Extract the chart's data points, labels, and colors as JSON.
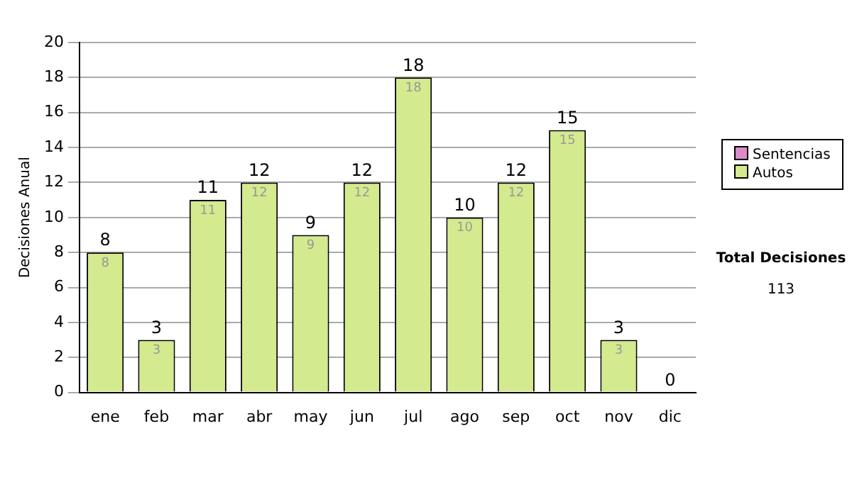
{
  "chart_data": {
    "type": "bar",
    "ylabel": "Decisiones Anual",
    "categories": [
      "ene",
      "feb",
      "mar",
      "abr",
      "may",
      "jun",
      "jul",
      "ago",
      "sep",
      "oct",
      "nov",
      "dic"
    ],
    "stacked": true,
    "series": [
      {
        "name": "Sentencias",
        "color": "#d98cc8",
        "values": [
          0,
          0,
          0,
          0,
          0,
          0,
          0,
          0,
          0,
          0,
          0,
          0
        ]
      },
      {
        "name": "Autos",
        "color": "#d4ea8e",
        "values": [
          8,
          3,
          11,
          12,
          9,
          12,
          18,
          10,
          12,
          15,
          3,
          0
        ],
        "value_labels": [
          "8",
          "3",
          "11",
          "12",
          "9",
          "12",
          "18",
          "10",
          "12",
          "15",
          "3",
          null
        ]
      }
    ],
    "totals": [
      "8",
      "3",
      "11",
      "12",
      "9",
      "12",
      "18",
      "10",
      "12",
      "15",
      "3",
      "0"
    ],
    "ylim": [
      0,
      20
    ],
    "yticks": [
      0,
      2,
      4,
      6,
      8,
      10,
      12,
      14,
      16,
      18,
      20
    ],
    "grid": "y",
    "legend": "right",
    "annotations": [
      "Total Decisiones",
      "113"
    ]
  }
}
